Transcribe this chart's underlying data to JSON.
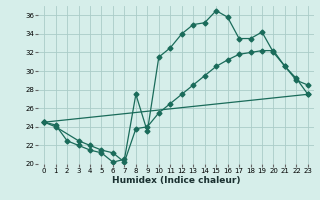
{
  "xlabel": "Humidex (Indice chaleur)",
  "bg_color": "#d6eeea",
  "grid_color": "#aaccc8",
  "line_color": "#1a6b5a",
  "xlim": [
    -0.5,
    23.5
  ],
  "ylim": [
    20,
    37
  ],
  "xticks": [
    0,
    1,
    2,
    3,
    4,
    5,
    6,
    7,
    8,
    9,
    10,
    11,
    12,
    13,
    14,
    15,
    16,
    17,
    18,
    19,
    20,
    21,
    22,
    23
  ],
  "yticks": [
    20,
    22,
    24,
    26,
    28,
    30,
    32,
    34,
    36
  ],
  "line1_x": [
    0,
    1,
    2,
    3,
    4,
    5,
    6,
    7,
    8,
    9,
    10,
    11,
    12,
    13,
    14,
    15,
    16,
    17,
    18,
    19,
    20,
    21,
    22,
    23
  ],
  "line1_y": [
    24.5,
    24.2,
    22.5,
    22.0,
    21.5,
    21.2,
    20.2,
    20.5,
    27.5,
    23.5,
    31.5,
    32.5,
    34.0,
    35.0,
    35.2,
    36.5,
    35.8,
    33.5,
    33.5,
    34.2,
    32.0,
    30.5,
    29.0,
    28.5
  ],
  "line2_x": [
    0,
    1,
    3,
    4,
    5,
    6,
    7,
    8,
    9,
    10,
    11,
    12,
    13,
    14,
    15,
    16,
    17,
    18,
    19,
    20,
    21,
    22,
    23
  ],
  "line2_y": [
    24.5,
    24.0,
    22.5,
    22.0,
    21.5,
    21.2,
    20.2,
    23.8,
    24.0,
    25.5,
    26.5,
    27.5,
    28.5,
    29.5,
    30.5,
    31.2,
    31.8,
    32.0,
    32.2,
    32.2,
    30.5,
    29.2,
    27.5
  ],
  "line3_x": [
    0,
    23
  ],
  "line3_y": [
    24.5,
    27.5
  ]
}
